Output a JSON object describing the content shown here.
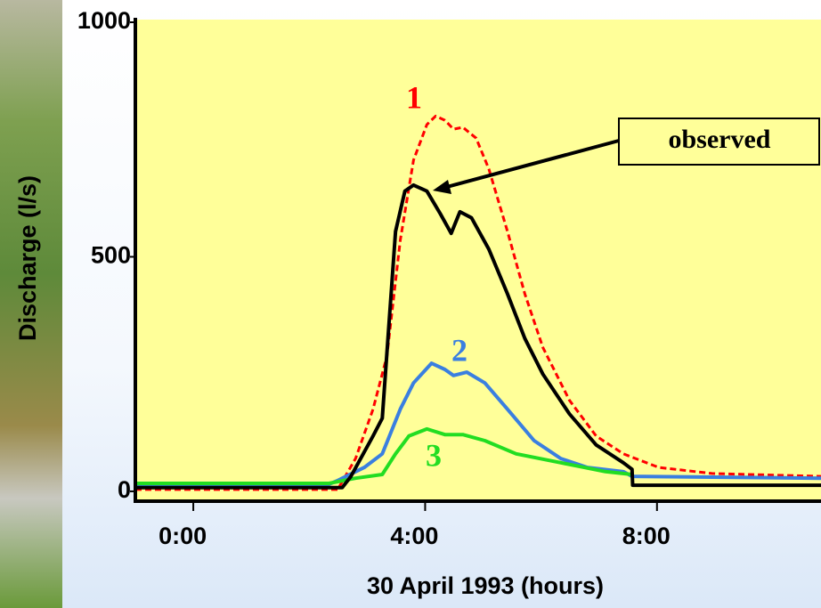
{
  "chart_data": {
    "type": "line",
    "xlabel": "30 April 1993 (hours)",
    "ylabel": "Discharge (l/s)",
    "xlim": [
      -1.0,
      10.83
    ],
    "ylim": [
      -20,
      1000
    ],
    "xticks": [
      {
        "value": 0,
        "label": "0:00"
      },
      {
        "value": 4,
        "label": "4:00"
      },
      {
        "value": 8,
        "label": "8:00"
      }
    ],
    "yticks": [
      0,
      500,
      1000
    ],
    "series": [
      {
        "name": "observed",
        "color": "#000000",
        "x": [
          -1.0,
          2.57,
          2.72,
          3.1,
          3.26,
          3.49,
          3.65,
          3.8,
          4.03,
          4.26,
          4.45,
          4.6,
          4.8,
          5.1,
          5.42,
          5.72,
          6.03,
          6.49,
          6.95,
          7.42,
          7.57,
          7.58,
          10.83
        ],
        "values": [
          8,
          8,
          32,
          118,
          156,
          554,
          640,
          653,
          640,
          592,
          550,
          596,
          583,
          516,
          421,
          326,
          250,
          165,
          99,
          61,
          47,
          13,
          13
        ]
      },
      {
        "name": "1",
        "color": "#ff0000",
        "x": [
          -1.0,
          2.49,
          2.8,
          3.1,
          3.34,
          3.57,
          3.8,
          4.03,
          4.18,
          4.34,
          4.49,
          4.65,
          4.88,
          5.1,
          5.42,
          5.72,
          6.03,
          6.49,
          6.95,
          7.42,
          8.03,
          8.95,
          10.83
        ],
        "values": [
          4,
          4,
          70,
          175,
          288,
          535,
          706,
          782,
          800,
          791,
          772,
          776,
          753,
          687,
          554,
          421,
          307,
          194,
          118,
          80,
          51,
          38,
          32
        ]
      },
      {
        "name": "2",
        "color": "#3a7fe0",
        "x": [
          -1.0,
          2.3,
          2.49,
          2.95,
          3.26,
          3.57,
          3.8,
          4.11,
          4.34,
          4.49,
          4.72,
          5.03,
          5.42,
          5.88,
          6.34,
          6.8,
          7.42,
          7.57,
          10.83
        ],
        "values": [
          13,
          13,
          23,
          51,
          80,
          175,
          231,
          273,
          260,
          247,
          254,
          231,
          175,
          108,
          70,
          51,
          42,
          32,
          28
        ]
      },
      {
        "name": "3",
        "color": "#22dd22",
        "x": [
          -1.0,
          2.34,
          2.8,
          3.26,
          3.49,
          3.72,
          4.03,
          4.34,
          4.65,
          5.03,
          5.57,
          6.34,
          7.11,
          7.57
        ],
        "values": [
          17,
          17,
          28,
          36,
          80,
          118,
          133,
          121,
          121,
          108,
          80,
          61,
          42,
          36
        ]
      }
    ]
  }
}
